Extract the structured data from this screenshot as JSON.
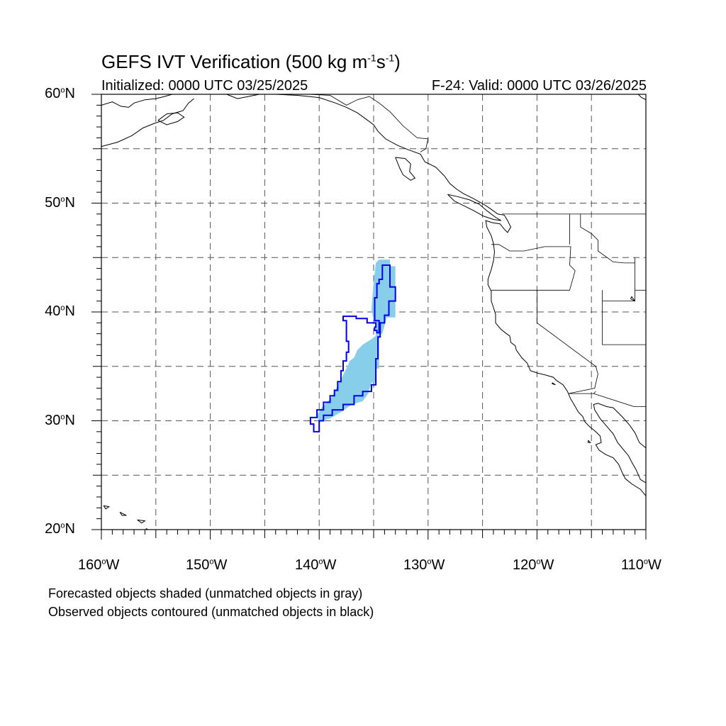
{
  "title": {
    "text_main": "GEFS IVT Verification (500 kg m",
    "exp1": "-1",
    "text_mid": "s",
    "exp2": "-1",
    "text_end": ")"
  },
  "subtitle_left": "Initialized: 0000 UTC 03/25/2025",
  "subtitle_right": "F-24: Valid: 0000 UTC 03/26/2025",
  "lat_labels": [
    {
      "deg": "60",
      "sym": "o",
      "hem": "N"
    },
    {
      "deg": "50",
      "sym": "o",
      "hem": "N"
    },
    {
      "deg": "40",
      "sym": "o",
      "hem": "N"
    },
    {
      "deg": "30",
      "sym": "o",
      "hem": "N"
    },
    {
      "deg": "20",
      "sym": "o",
      "hem": "N"
    }
  ],
  "lon_labels": [
    {
      "deg": "160",
      "sym": "o",
      "hem": "W"
    },
    {
      "deg": "150",
      "sym": "o",
      "hem": "W"
    },
    {
      "deg": "140",
      "sym": "o",
      "hem": "W"
    },
    {
      "deg": "130",
      "sym": "o",
      "hem": "W"
    },
    {
      "deg": "120",
      "sym": "o",
      "hem": "W"
    },
    {
      "deg": "110",
      "sym": "o",
      "hem": "W"
    }
  ],
  "footnote_1": "Forecasted objects shaded (unmatched objects in gray)",
  "footnote_2": "Observed objects contoured (unmatched objects in black)",
  "colors": {
    "forecast_fill": "#87ceeb",
    "observed_contour": "#0000ee",
    "coast": "#000000",
    "grid": "#555555"
  },
  "map_extent": {
    "lon_min": -160,
    "lon_max": -110,
    "lat_min": 20,
    "lat_max": 60
  },
  "forecast_object": [
    [
      -134.5,
      44.8
    ],
    [
      -133.5,
      44.8
    ],
    [
      -133.5,
      44.2
    ],
    [
      -133.0,
      44.2
    ],
    [
      -133.0,
      39.5
    ],
    [
      -133.8,
      39.5
    ],
    [
      -134.2,
      38.0
    ],
    [
      -134.5,
      38.0
    ],
    [
      -134.5,
      34.8
    ],
    [
      -134.8,
      34.8
    ],
    [
      -134.8,
      33.5
    ],
    [
      -135.2,
      33.5
    ],
    [
      -135.5,
      32.5
    ],
    [
      -136.0,
      31.8
    ],
    [
      -137.0,
      31.5
    ],
    [
      -138.0,
      30.8
    ],
    [
      -139.0,
      30.2
    ],
    [
      -139.8,
      30.0
    ],
    [
      -140.0,
      29.8
    ],
    [
      -140.2,
      30.5
    ],
    [
      -139.8,
      31.2
    ],
    [
      -139.2,
      31.8
    ],
    [
      -138.8,
      32.2
    ],
    [
      -138.5,
      32.8
    ],
    [
      -138.2,
      33.5
    ],
    [
      -138.0,
      33.8
    ],
    [
      -137.8,
      34.2
    ],
    [
      -137.5,
      34.8
    ],
    [
      -137.2,
      35.5
    ],
    [
      -136.8,
      35.8
    ],
    [
      -136.5,
      36.5
    ],
    [
      -136.0,
      37.0
    ],
    [
      -135.2,
      37.5
    ],
    [
      -134.8,
      37.8
    ],
    [
      -134.8,
      39.0
    ],
    [
      -135.0,
      39.2
    ],
    [
      -135.2,
      40.2
    ],
    [
      -135.0,
      42.8
    ],
    [
      -134.8,
      44.5
    ]
  ],
  "observed_contour": [
    [
      -134.0,
      44.3
    ],
    [
      -133.5,
      44.3
    ],
    [
      -133.5,
      42.3
    ],
    [
      -133.0,
      42.3
    ],
    [
      -133.0,
      41.0
    ],
    [
      -133.6,
      41.0
    ],
    [
      -133.6,
      39.7
    ],
    [
      -134.0,
      39.7
    ],
    [
      -134.0,
      39.0
    ],
    [
      -134.4,
      39.0
    ],
    [
      -134.4,
      37.7
    ],
    [
      -134.6,
      37.7
    ],
    [
      -134.6,
      35.7
    ],
    [
      -134.8,
      35.7
    ],
    [
      -134.8,
      33.3
    ],
    [
      -135.2,
      33.3
    ],
    [
      -135.2,
      32.7
    ],
    [
      -136.0,
      32.7
    ],
    [
      -136.0,
      32.3
    ],
    [
      -136.8,
      32.3
    ],
    [
      -136.8,
      31.5
    ],
    [
      -137.8,
      31.5
    ],
    [
      -137.8,
      31.0
    ],
    [
      -138.8,
      31.0
    ],
    [
      -138.8,
      30.5
    ],
    [
      -139.6,
      30.5
    ],
    [
      -139.6,
      30.0
    ],
    [
      -140.0,
      30.0
    ],
    [
      -140.0,
      29.0
    ],
    [
      -140.5,
      29.0
    ],
    [
      -140.5,
      29.7
    ],
    [
      -140.8,
      29.7
    ],
    [
      -140.8,
      30.3
    ],
    [
      -140.2,
      30.3
    ],
    [
      -140.2,
      31.0
    ],
    [
      -139.6,
      31.0
    ],
    [
      -139.6,
      31.7
    ],
    [
      -139.0,
      31.7
    ],
    [
      -139.0,
      32.3
    ],
    [
      -138.6,
      32.3
    ],
    [
      -138.6,
      32.8
    ],
    [
      -138.3,
      32.8
    ],
    [
      -138.3,
      33.6
    ],
    [
      -138.0,
      33.6
    ],
    [
      -138.0,
      34.6
    ],
    [
      -137.8,
      34.6
    ],
    [
      -137.8,
      35.5
    ],
    [
      -137.5,
      35.5
    ],
    [
      -137.5,
      36.3
    ],
    [
      -137.3,
      36.3
    ],
    [
      -137.3,
      37.3
    ],
    [
      -137.5,
      37.3
    ],
    [
      -137.5,
      39.2
    ],
    [
      -137.8,
      39.2
    ],
    [
      -137.8,
      39.6
    ],
    [
      -136.6,
      39.6
    ],
    [
      -136.6,
      39.4
    ],
    [
      -135.6,
      39.4
    ],
    [
      -135.6,
      39.0
    ],
    [
      -134.8,
      39.0
    ],
    [
      -134.8,
      38.6
    ],
    [
      -134.9,
      38.6
    ],
    [
      -134.9,
      38.3
    ],
    [
      -134.7,
      38.3
    ],
    [
      -134.7,
      38.1
    ],
    [
      -134.5,
      38.1
    ],
    [
      -134.5,
      39.2
    ],
    [
      -134.9,
      39.2
    ],
    [
      -134.9,
      41.3
    ],
    [
      -134.7,
      41.3
    ],
    [
      -134.7,
      42.6
    ],
    [
      -134.5,
      42.6
    ],
    [
      -134.5,
      43.0
    ],
    [
      -134.2,
      43.0
    ],
    [
      -134.2,
      44.3
    ]
  ],
  "coastlines": [
    [
      [
        -160,
        55.2
      ],
      [
        -158.5,
        55.6
      ],
      [
        -157.2,
        56.2
      ],
      [
        -156.2,
        56.9
      ],
      [
        -155.2,
        57.3
      ],
      [
        -154.3,
        57.6
      ],
      [
        -153.5,
        58.2
      ],
      [
        -152.5,
        58.5
      ],
      [
        -152.0,
        59.2
      ],
      [
        -151.5,
        59.6
      ]
    ],
    [
      [
        -160,
        59.0
      ],
      [
        -159.0,
        59.3
      ],
      [
        -158.2,
        58.9
      ],
      [
        -157.5,
        58.8
      ],
      [
        -157.0,
        59.2
      ],
      [
        -156.0,
        59.5
      ],
      [
        -155.0,
        59.6
      ],
      [
        -154.2,
        59.8
      ],
      [
        -153.5,
        60.0
      ]
    ],
    [
      [
        -154.8,
        57.6
      ],
      [
        -154.0,
        57.2
      ],
      [
        -153.0,
        57.5
      ],
      [
        -152.4,
        57.9
      ],
      [
        -153.0,
        58.3
      ],
      [
        -154.0,
        58.2
      ],
      [
        -154.8,
        57.6
      ]
    ],
    [
      [
        -148.5,
        60.0
      ],
      [
        -147.5,
        59.6
      ],
      [
        -146.5,
        59.8
      ],
      [
        -145.5,
        60.0
      ],
      [
        -144.0,
        60.0
      ],
      [
        -142.0,
        59.9
      ],
      [
        -140.0,
        59.7
      ],
      [
        -138.5,
        59.2
      ],
      [
        -137.5,
        58.8
      ],
      [
        -136.5,
        58.3
      ],
      [
        -135.8,
        57.8
      ],
      [
        -135.0,
        57.2
      ],
      [
        -134.6,
        56.6
      ],
      [
        -133.9,
        55.9
      ],
      [
        -132.8,
        55.3
      ],
      [
        -131.8,
        54.9
      ],
      [
        -130.7,
        54.5
      ],
      [
        -130.3,
        53.8
      ],
      [
        -129.3,
        53.3
      ],
      [
        -128.5,
        52.5
      ],
      [
        -128.0,
        51.8
      ],
      [
        -127.4,
        51.3
      ],
      [
        -126.8,
        50.9
      ],
      [
        -125.8,
        50.4
      ],
      [
        -124.9,
        49.9
      ],
      [
        -124.3,
        49.5
      ],
      [
        -123.6,
        49.0
      ],
      [
        -123.0,
        48.9
      ],
      [
        -122.7,
        48.4
      ],
      [
        -122.4,
        47.8
      ],
      [
        -122.7,
        47.3
      ],
      [
        -123.0,
        47.6
      ],
      [
        -123.4,
        48.1
      ],
      [
        -124.1,
        48.2
      ],
      [
        -124.7,
        48.4
      ],
      [
        -124.6,
        47.8
      ],
      [
        -124.2,
        47.0
      ],
      [
        -124.0,
        46.3
      ],
      [
        -123.9,
        45.5
      ],
      [
        -124.0,
        44.7
      ],
      [
        -124.2,
        43.9
      ],
      [
        -124.5,
        43.0
      ],
      [
        -124.5,
        42.5
      ],
      [
        -124.2,
        41.9
      ],
      [
        -124.2,
        41.0
      ],
      [
        -124.0,
        40.4
      ],
      [
        -123.8,
        39.8
      ],
      [
        -123.8,
        39.0
      ],
      [
        -123.3,
        38.4
      ],
      [
        -122.8,
        38.0
      ],
      [
        -122.5,
        37.8
      ],
      [
        -122.4,
        37.2
      ],
      [
        -122.0,
        36.9
      ],
      [
        -121.9,
        36.5
      ],
      [
        -121.4,
        35.8
      ],
      [
        -120.9,
        35.3
      ],
      [
        -120.6,
        34.6
      ],
      [
        -120.0,
        34.4
      ],
      [
        -119.2,
        34.2
      ],
      [
        -118.5,
        34.0
      ],
      [
        -118.2,
        33.7
      ],
      [
        -117.6,
        33.3
      ],
      [
        -117.2,
        32.7
      ],
      [
        -116.9,
        32.0
      ],
      [
        -116.6,
        31.5
      ],
      [
        -116.2,
        30.8
      ],
      [
        -115.8,
        30.4
      ],
      [
        -115.6,
        29.9
      ],
      [
        -115.2,
        29.5
      ],
      [
        -114.6,
        29.0
      ],
      [
        -114.2,
        28.6
      ],
      [
        -114.1,
        28.0
      ],
      [
        -114.6,
        27.8
      ],
      [
        -114.3,
        27.3
      ],
      [
        -113.7,
        26.9
      ],
      [
        -113.0,
        26.6
      ],
      [
        -112.5,
        26.0
      ],
      [
        -112.2,
        25.3
      ],
      [
        -111.9,
        24.7
      ],
      [
        -111.3,
        24.2
      ],
      [
        -110.5,
        23.7
      ],
      [
        -110.0,
        23.1
      ]
    ],
    [
      [
        -110.0,
        24.3
      ],
      [
        -110.5,
        24.6
      ],
      [
        -110.9,
        25.5
      ],
      [
        -111.3,
        26.2
      ],
      [
        -111.6,
        26.8
      ],
      [
        -112.1,
        27.4
      ],
      [
        -112.6,
        28.0
      ],
      [
        -113.0,
        28.8
      ],
      [
        -113.6,
        29.5
      ],
      [
        -114.2,
        30.2
      ],
      [
        -114.7,
        31.0
      ],
      [
        -114.8,
        31.5
      ],
      [
        -114.4,
        31.6
      ],
      [
        -113.6,
        31.3
      ],
      [
        -113.0,
        31.2
      ],
      [
        -112.2,
        30.4
      ],
      [
        -111.5,
        29.6
      ],
      [
        -111.0,
        28.9
      ],
      [
        -110.6,
        28.0
      ],
      [
        -110.0,
        27.5
      ]
    ],
    [
      [
        -110.0,
        26.8
      ],
      [
        -109.7,
        26.2
      ],
      [
        -109.2,
        25.6
      ],
      [
        -108.7,
        25.2
      ]
    ],
    [
      [
        -133.0,
        54.2
      ],
      [
        -132.1,
        54.1
      ],
      [
        -131.6,
        53.6
      ],
      [
        -131.7,
        52.9
      ],
      [
        -131.2,
        52.3
      ],
      [
        -131.6,
        52.1
      ],
      [
        -132.3,
        52.6
      ],
      [
        -132.6,
        53.2
      ],
      [
        -133.0,
        54.2
      ]
    ],
    [
      [
        -128.2,
        50.8
      ],
      [
        -127.3,
        50.6
      ],
      [
        -126.2,
        50.3
      ],
      [
        -125.3,
        49.9
      ],
      [
        -124.6,
        49.3
      ],
      [
        -123.8,
        48.7
      ],
      [
        -123.3,
        48.4
      ],
      [
        -124.0,
        48.5
      ],
      [
        -124.9,
        48.8
      ],
      [
        -125.8,
        49.3
      ],
      [
        -126.6,
        49.7
      ],
      [
        -127.6,
        50.2
      ],
      [
        -128.2,
        50.8
      ]
    ],
    [
      [
        -110.0,
        59.5
      ],
      [
        -110.4,
        59.7
      ],
      [
        -110.7,
        60.0
      ]
    ],
    [
      [
        -155.9,
        20.1
      ],
      [
        -155.0,
        19.6
      ],
      [
        -155.3,
        18.9
      ],
      [
        -155.9,
        19.3
      ],
      [
        -155.9,
        20.1
      ]
    ],
    [
      [
        -156.7,
        20.9
      ],
      [
        -156.0,
        20.8
      ],
      [
        -156.3,
        20.6
      ],
      [
        -156.7,
        20.9
      ]
    ],
    [
      [
        -158.3,
        21.6
      ],
      [
        -157.7,
        21.3
      ],
      [
        -158.1,
        21.3
      ],
      [
        -158.3,
        21.6
      ]
    ],
    [
      [
        -159.8,
        22.2
      ],
      [
        -159.3,
        22.1
      ],
      [
        -159.6,
        21.9
      ],
      [
        -159.8,
        22.2
      ]
    ],
    [
      [
        -118.6,
        33.5
      ],
      [
        -118.3,
        33.3
      ],
      [
        -118.6,
        33.4
      ],
      [
        -118.6,
        33.5
      ]
    ],
    [
      [
        -115.3,
        28.2
      ],
      [
        -115.1,
        28.0
      ],
      [
        -115.3,
        28.0
      ],
      [
        -115.3,
        28.2
      ]
    ],
    [
      [
        -111.4,
        41.2
      ],
      [
        -111.0,
        41.0
      ],
      [
        -111.3,
        41.4
      ],
      [
        -111.4,
        41.2
      ]
    ]
  ],
  "borders": [
    [
      [
        -123.2,
        49.0
      ],
      [
        -110.0,
        49.0
      ]
    ],
    [
      [
        -141.0,
        60.0
      ],
      [
        -139.0,
        59.9
      ],
      [
        -137.5,
        59.0
      ],
      [
        -136.5,
        59.5
      ],
      [
        -135.4,
        59.8
      ],
      [
        -134.5,
        59.2
      ],
      [
        -133.5,
        58.4
      ],
      [
        -132.3,
        57.1
      ],
      [
        -131.0,
        56.0
      ],
      [
        -130.0,
        55.9
      ],
      [
        -130.2,
        55.0
      ],
      [
        -130.7,
        54.7
      ]
    ],
    [
      [
        -124.2,
        46.2
      ],
      [
        -123.5,
        46.2
      ],
      [
        -122.5,
        45.6
      ],
      [
        -121.2,
        45.6
      ],
      [
        -119.3,
        46.0
      ],
      [
        -116.9,
        46.0
      ],
      [
        -117.0,
        44.3
      ],
      [
        -116.5,
        43.8
      ],
      [
        -117.0,
        42.0
      ],
      [
        -120.0,
        42.0
      ],
      [
        -124.2,
        42.0
      ]
    ],
    [
      [
        -117.0,
        49.0
      ],
      [
        -117.0,
        46.2
      ]
    ],
    [
      [
        -116.0,
        49.0
      ],
      [
        -116.0,
        47.8
      ],
      [
        -115.0,
        47.2
      ],
      [
        -114.4,
        46.6
      ],
      [
        -114.4,
        45.6
      ],
      [
        -113.0,
        44.6
      ],
      [
        -112.0,
        44.5
      ],
      [
        -111.0,
        44.5
      ]
    ],
    [
      [
        -111.0,
        45.0
      ],
      [
        -111.0,
        41.0
      ],
      [
        -114.0,
        41.0
      ]
    ],
    [
      [
        -110.0,
        42.0
      ],
      [
        -111.0,
        42.0
      ]
    ],
    [
      [
        -114.0,
        42.0
      ],
      [
        -114.0,
        37.0
      ],
      [
        -110.0,
        37.0
      ]
    ],
    [
      [
        -120.0,
        42.0
      ],
      [
        -120.0,
        39.0
      ],
      [
        -114.6,
        35.0
      ],
      [
        -114.4,
        34.3
      ],
      [
        -114.7,
        33.0
      ],
      [
        -117.1,
        32.5
      ],
      [
        -114.8,
        32.5
      ],
      [
        -111.1,
        31.3
      ],
      [
        -110.0,
        31.3
      ]
    ],
    [
      [
        -114.8,
        32.5
      ],
      [
        -114.6,
        32.7
      ]
    ]
  ]
}
